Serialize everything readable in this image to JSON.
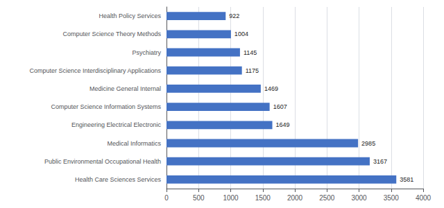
{
  "chart_data": {
    "type": "bar",
    "orientation": "horizontal",
    "categories": [
      "Health Care Sciences Services",
      "Public Environmental Occupational Health",
      "Medical Informatics",
      "Engineering Electrical Electronic",
      "Computer Science Information Systems",
      "Medicine General Internal",
      "Computer Science Interdisciplinary Applications",
      "Psychiatry",
      "Computer Science Theory Methods",
      "Health Policy Services"
    ],
    "values": [
      3581,
      3167,
      2985,
      1649,
      1607,
      1469,
      1175,
      1145,
      1004,
      922
    ],
    "color": "#4472C4",
    "xlim": [
      0,
      4000
    ],
    "xticks": [
      0,
      500,
      1000,
      1500,
      2000,
      2500,
      3000,
      3500,
      4000
    ],
    "grid": true,
    "data_labels": true
  }
}
